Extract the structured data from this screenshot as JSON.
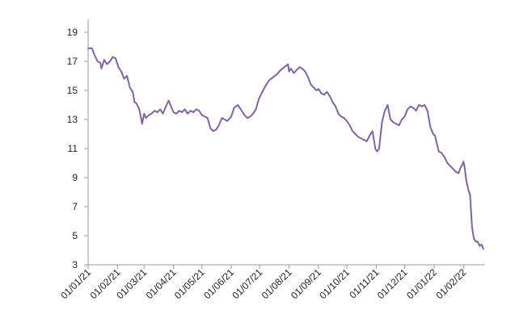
{
  "chart_data": {
    "type": "line",
    "title": "",
    "xlabel": "",
    "ylabel": "",
    "ylim": [
      3,
      19
    ],
    "y_ticks": [
      "3",
      "5",
      "7",
      "9",
      "11",
      "13",
      "15",
      "17",
      "19"
    ],
    "x_range": [
      "01/01/21",
      "23/02/22"
    ],
    "x_ticks": [
      "01/01/21",
      "01/02/21",
      "01/03/21",
      "01/04/21",
      "01/05/21",
      "01/06/21",
      "01/07/21",
      "01/08/21",
      "01/09/21",
      "01/10/21",
      "01/11/21",
      "01/12/21",
      "01/01/22",
      "01/02/22"
    ],
    "grid": false,
    "legend": "none",
    "series": [
      {
        "color": "#8064A2",
        "x": [
          "01/01/21",
          "05/01/21",
          "08/01/21",
          "11/01/21",
          "14/01/21",
          "15/01/21",
          "18/01/21",
          "21/01/21",
          "24/01/21",
          "27/01/21",
          "30/01/21",
          "02/02/21",
          "05/02/21",
          "08/02/21",
          "11/02/21",
          "14/02/21",
          "17/02/21",
          "19/02/21",
          "21/02/21",
          "24/02/21",
          "27/02/21",
          "01/03/21",
          "03/03/21",
          "06/03/21",
          "09/03/21",
          "12/03/21",
          "15/03/21",
          "18/03/21",
          "21/03/21",
          "24/03/21",
          "27/03/21",
          "01/04/21",
          "04/04/21",
          "07/04/21",
          "10/04/21",
          "13/04/21",
          "16/04/21",
          "19/04/21",
          "22/04/21",
          "25/04/21",
          "28/04/21",
          "01/05/21",
          "04/05/21",
          "07/05/21",
          "10/05/21",
          "13/05/21",
          "16/05/21",
          "19/05/21",
          "22/05/21",
          "25/05/21",
          "28/05/21",
          "01/06/21",
          "04/06/21",
          "08/06/21",
          "12/06/21",
          "15/06/21",
          "18/06/21",
          "21/06/21",
          "24/06/21",
          "27/06/21",
          "30/06/21",
          "03/07/21",
          "07/07/21",
          "11/07/21",
          "15/07/21",
          "19/07/21",
          "23/07/21",
          "27/07/21",
          "31/07/21",
          "01/08/21",
          "03/08/21",
          "06/08/21",
          "09/08/21",
          "12/08/21",
          "15/08/21",
          "18/08/21",
          "21/08/21",
          "24/08/21",
          "27/08/21",
          "30/08/21",
          "01/09/21",
          "04/09/21",
          "07/09/21",
          "10/09/21",
          "13/09/21",
          "16/09/21",
          "19/09/21",
          "22/09/21",
          "25/09/21",
          "28/09/21",
          "01/10/21",
          "04/10/21",
          "07/10/21",
          "10/10/21",
          "13/10/21",
          "16/10/21",
          "19/10/21",
          "22/10/21",
          "25/10/21",
          "28/10/21",
          "31/10/21",
          "02/11/21",
          "04/11/21",
          "07/11/21",
          "10/11/21",
          "13/11/21",
          "16/11/21",
          "19/11/21",
          "22/11/21",
          "25/11/21",
          "28/11/21",
          "01/12/21",
          "04/12/21",
          "07/12/21",
          "10/12/21",
          "13/12/21",
          "16/12/21",
          "19/12/21",
          "22/12/21",
          "25/12/21",
          "28/12/21",
          "31/12/21",
          "02/01/22",
          "04/01/22",
          "06/01/22",
          "09/01/22",
          "12/01/22",
          "15/01/22",
          "18/01/22",
          "21/01/22",
          "24/01/22",
          "27/01/22",
          "29/01/22",
          "31/01/22",
          "01/02/22",
          "02/02/22",
          "04/02/22",
          "06/02/22",
          "08/02/22",
          "10/02/22",
          "12/02/22",
          "14/02/22",
          "16/02/22",
          "18/02/22",
          "20/02/22",
          "22/02/22"
        ],
        "y": [
          17.9,
          17.9,
          17.4,
          17.0,
          16.9,
          16.5,
          17.1,
          16.8,
          17.0,
          17.3,
          17.2,
          16.6,
          16.3,
          15.8,
          16.0,
          15.2,
          14.9,
          14.2,
          14.1,
          13.7,
          12.7,
          13.4,
          13.1,
          13.3,
          13.4,
          13.6,
          13.5,
          13.7,
          13.4,
          13.9,
          14.3,
          13.5,
          13.4,
          13.6,
          13.5,
          13.7,
          13.4,
          13.6,
          13.5,
          13.7,
          13.6,
          13.3,
          13.2,
          13.1,
          12.4,
          12.2,
          12.3,
          12.6,
          13.1,
          13.0,
          12.9,
          13.2,
          13.8,
          14.0,
          13.6,
          13.3,
          13.1,
          13.2,
          13.4,
          13.7,
          14.4,
          14.8,
          15.3,
          15.7,
          15.9,
          16.1,
          16.4,
          16.6,
          16.8,
          16.3,
          16.5,
          16.2,
          16.4,
          16.6,
          16.5,
          16.3,
          15.9,
          15.4,
          15.2,
          15.0,
          15.1,
          14.8,
          14.7,
          14.9,
          14.6,
          14.2,
          13.9,
          13.4,
          13.2,
          13.1,
          12.9,
          12.6,
          12.2,
          12.0,
          11.8,
          11.7,
          11.6,
          11.5,
          11.9,
          12.2,
          11.0,
          10.8,
          11.0,
          12.8,
          13.6,
          14.0,
          13.0,
          12.8,
          12.7,
          12.6,
          13.0,
          13.2,
          13.7,
          13.9,
          13.8,
          13.6,
          14.0,
          13.9,
          14.0,
          13.6,
          12.5,
          12.0,
          11.9,
          11.3,
          10.8,
          10.7,
          10.4,
          10.0,
          9.8,
          9.6,
          9.4,
          9.3,
          9.7,
          9.9,
          10.1,
          9.8,
          8.8,
          8.2,
          7.8,
          5.6,
          4.8,
          4.6,
          4.6,
          4.3,
          4.4,
          4.1
        ]
      }
    ]
  }
}
